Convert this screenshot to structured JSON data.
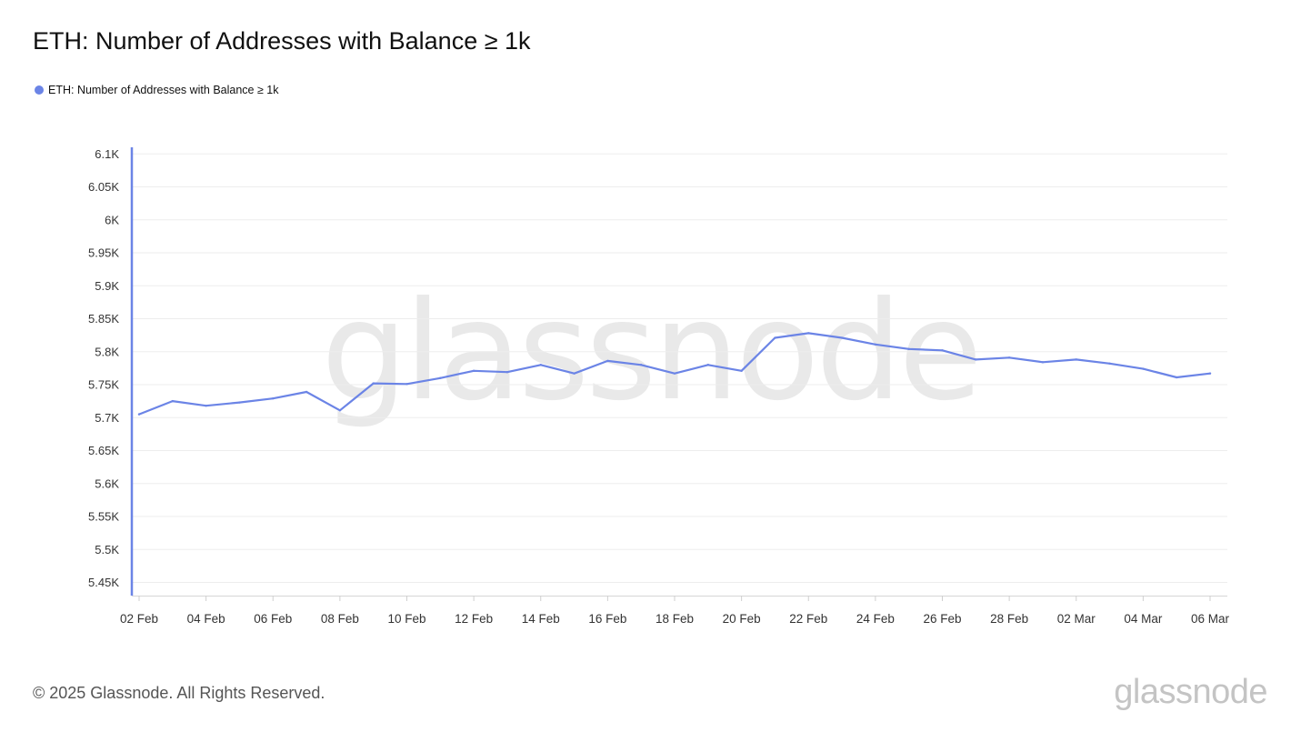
{
  "header": {
    "title": "ETH: Number of Addresses with Balance ≥ 1k"
  },
  "footer": {
    "copyright": "© 2025 Glassnode. All Rights Reserved.",
    "logo_text": "glassnode"
  },
  "watermark": "glassnode",
  "colors": {
    "series": "#6b84e6",
    "axis": "#6b84e6",
    "grid": "#ededed",
    "watermark": "#e9e9e9"
  },
  "chart_data": {
    "type": "line",
    "title": "ETH: Number of Addresses with Balance ≥ 1k",
    "xlabel": "",
    "ylabel": "",
    "legend_position": "top-left",
    "grid": true,
    "ylim": [
      5430,
      6110
    ],
    "y_ticks": [
      5450,
      5500,
      5550,
      5600,
      5650,
      5700,
      5750,
      5800,
      5850,
      5900,
      5950,
      6000,
      6050,
      6100
    ],
    "y_tick_labels": [
      "5.45K",
      "5.5K",
      "5.55K",
      "5.6K",
      "5.65K",
      "5.7K",
      "5.75K",
      "5.8K",
      "5.85K",
      "5.9K",
      "5.95K",
      "6K",
      "6.05K",
      "6.1K"
    ],
    "x_tick_labels": [
      "02 Feb",
      "04 Feb",
      "06 Feb",
      "08 Feb",
      "10 Feb",
      "12 Feb",
      "14 Feb",
      "16 Feb",
      "18 Feb",
      "20 Feb",
      "22 Feb",
      "24 Feb",
      "26 Feb",
      "28 Feb",
      "02 Mar",
      "04 Mar",
      "06 Mar"
    ],
    "x": [
      "2025-02-02",
      "2025-02-03",
      "2025-02-04",
      "2025-02-05",
      "2025-02-06",
      "2025-02-07",
      "2025-02-08",
      "2025-02-09",
      "2025-02-10",
      "2025-02-11",
      "2025-02-12",
      "2025-02-13",
      "2025-02-14",
      "2025-02-15",
      "2025-02-16",
      "2025-02-17",
      "2025-02-18",
      "2025-02-19",
      "2025-02-20",
      "2025-02-21",
      "2025-02-22",
      "2025-02-23",
      "2025-02-24",
      "2025-02-25",
      "2025-02-26",
      "2025-02-27",
      "2025-02-28",
      "2025-03-01",
      "2025-03-02",
      "2025-03-03",
      "2025-03-04",
      "2025-03-05",
      "2025-03-06"
    ],
    "series": [
      {
        "name": "ETH: Number of Addresses with Balance ≥ 1k",
        "values": [
          5705,
          5725,
          5718,
          5723,
          5729,
          5739,
          5711,
          5752,
          5751,
          5760,
          5771,
          5769,
          5780,
          5767,
          5786,
          5780,
          5767,
          5780,
          5771,
          5821,
          5828,
          5821,
          5811,
          5804,
          5802,
          5788,
          5791,
          5784,
          5788,
          5782,
          5774,
          5761,
          5767
        ]
      }
    ]
  }
}
